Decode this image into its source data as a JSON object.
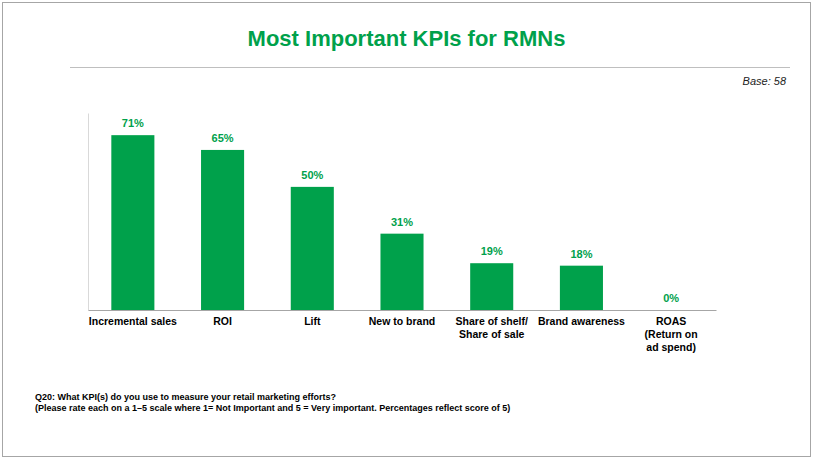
{
  "chart_data": {
    "type": "bar",
    "title": "Most Important KPIs for RMNs",
    "subtitle": "Base: 58",
    "categories": [
      "Incremental sales",
      "ROI",
      "Lift",
      "New to brand",
      "Share of shelf/\nShare of sale",
      "Brand awareness",
      "ROAS\n(Return on\nad spend)"
    ],
    "values": [
      71,
      65,
      50,
      31,
      19,
      18,
      0
    ],
    "value_labels": [
      "71%",
      "65%",
      "50%",
      "31%",
      "19%",
      "18%",
      "0%"
    ],
    "color": "#00a14b",
    "ylim": [
      0,
      80
    ],
    "data_labels": true,
    "tick_labels": "x",
    "grid": false,
    "footnote": [
      "Q20: What KPI(s) do you use to measure your retail marketing efforts?",
      "(Please rate each on a 1–5 scale where 1= Not Important and 5 = Very important. Percentages reflect score of 5)"
    ]
  }
}
